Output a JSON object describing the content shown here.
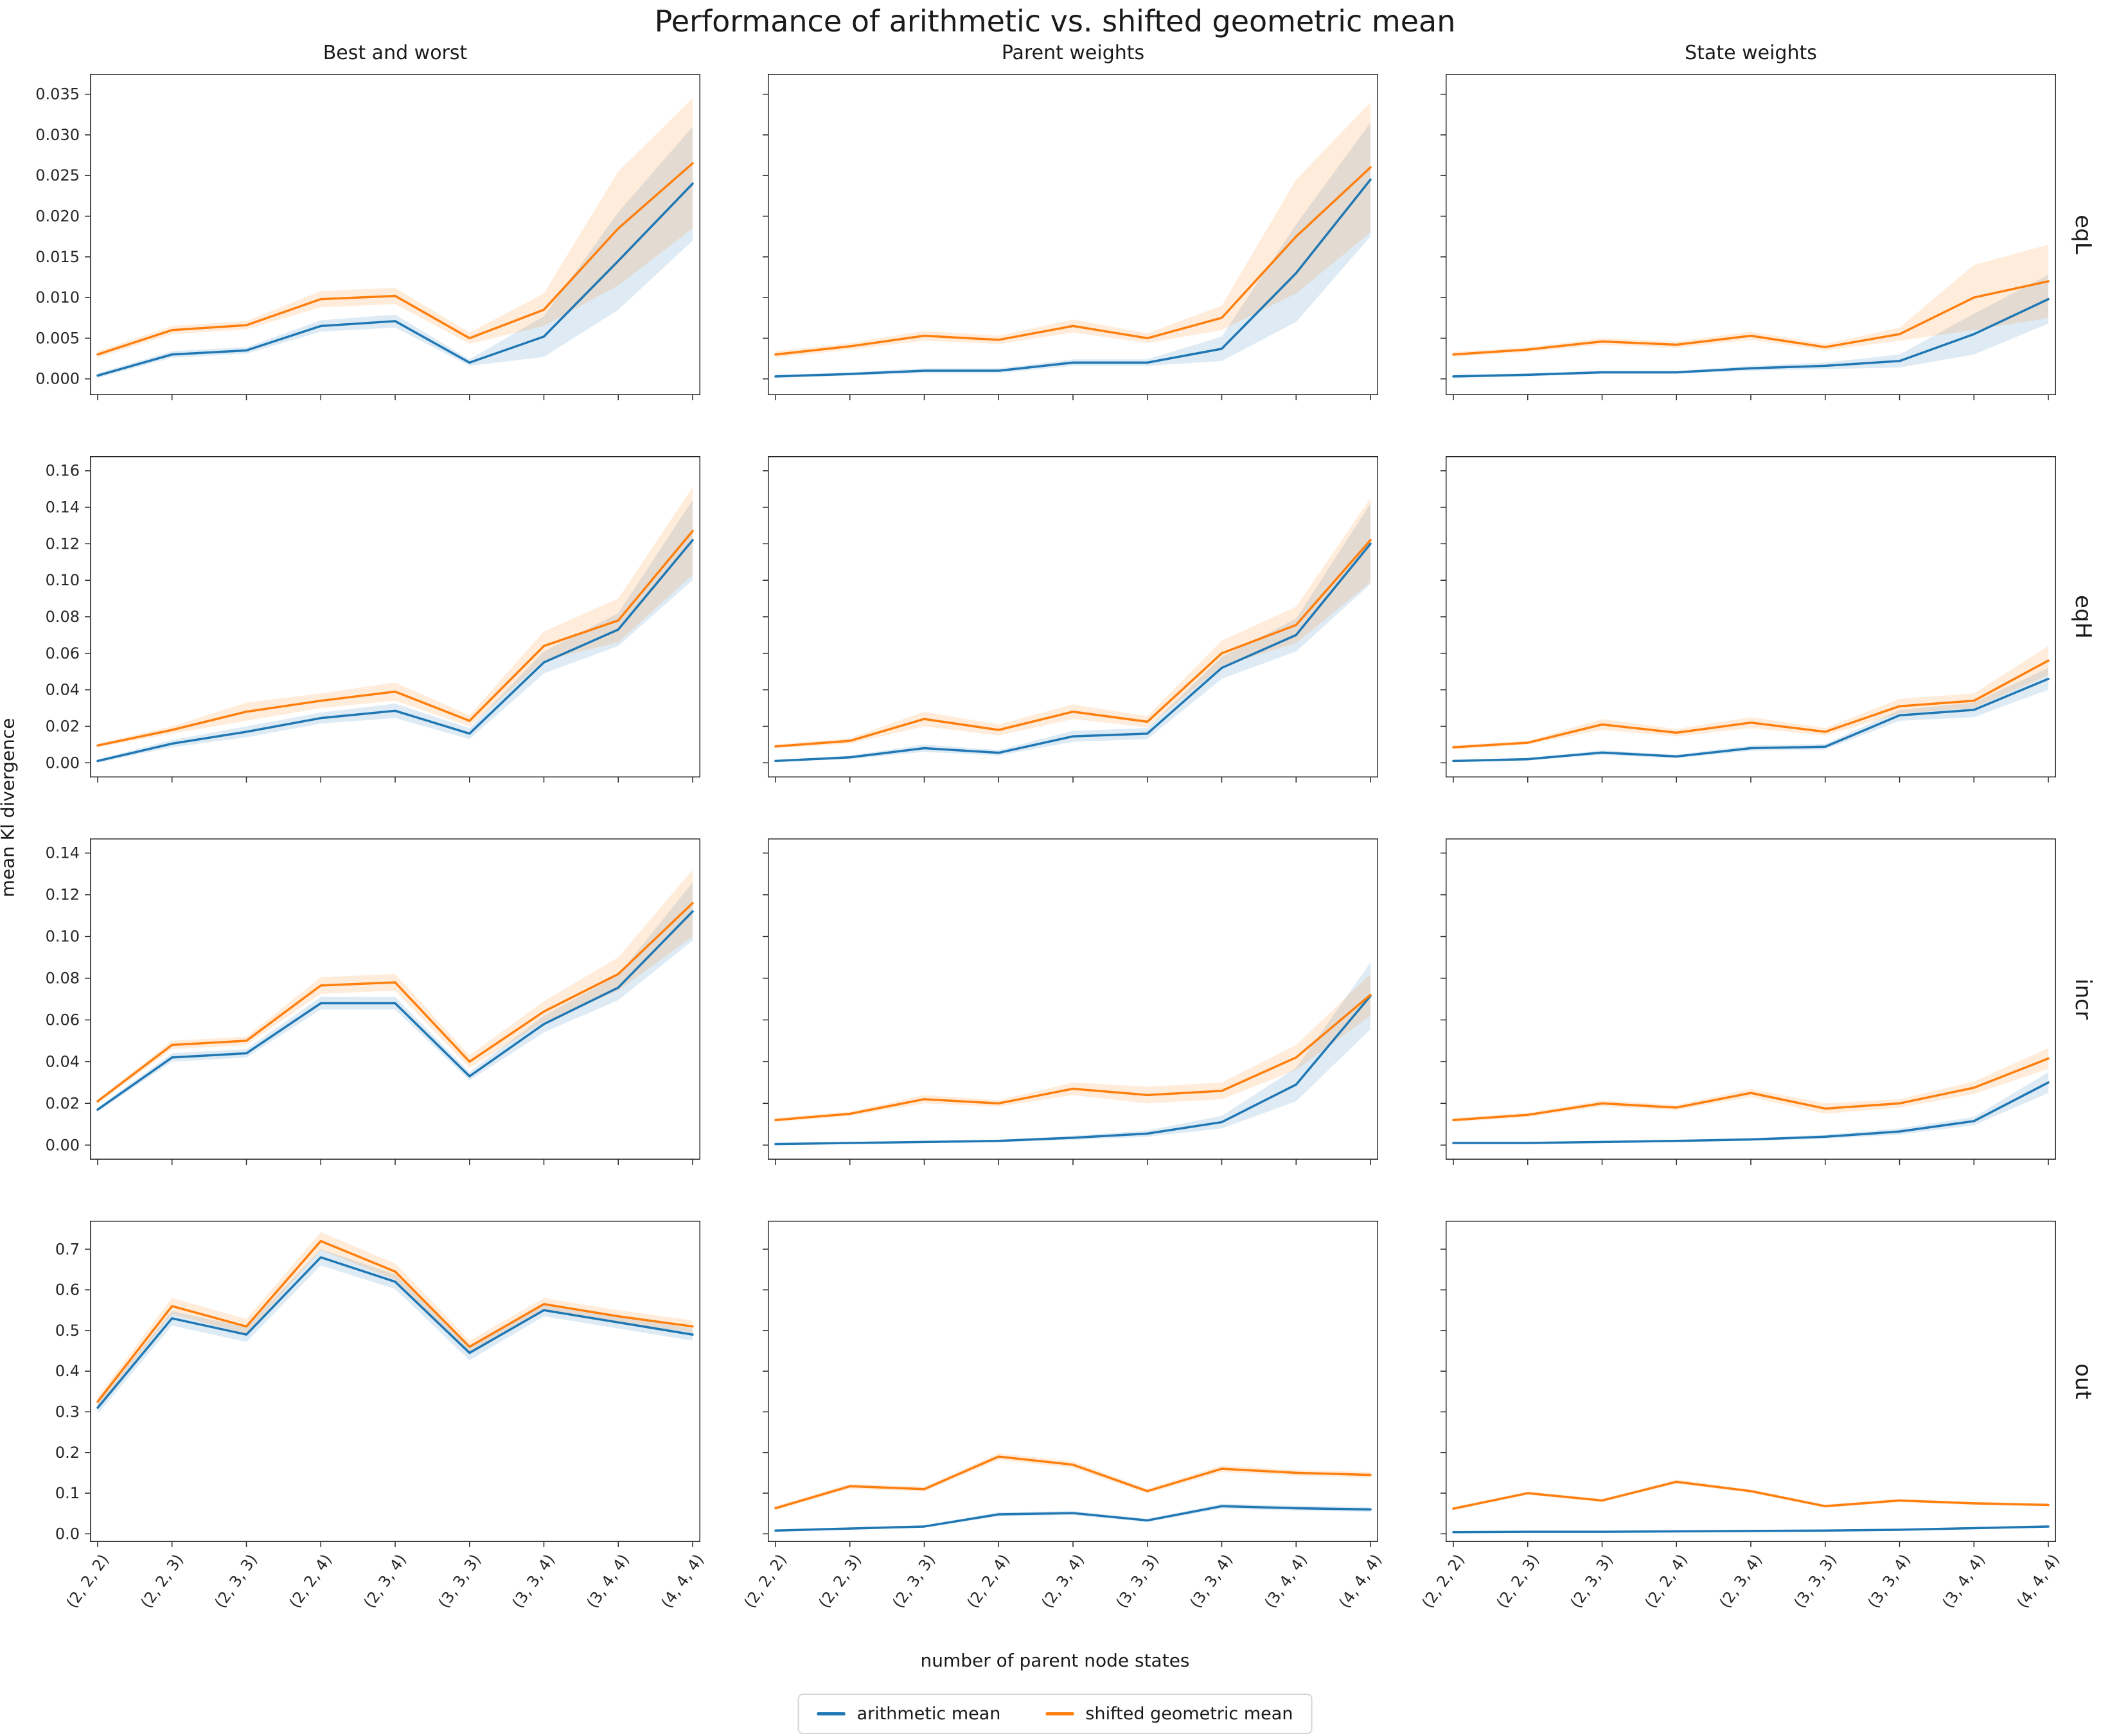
{
  "title": "Performance of arithmetic vs. shifted geometric mean",
  "xlabel": "number of parent node states",
  "ylabel": "mean Kl divergence",
  "legend": [
    {
      "label": "arithmetic mean",
      "color": "#1f77b4"
    },
    {
      "label": "shifted geometric mean",
      "color": "#ff7f0e"
    }
  ],
  "colors": {
    "arithmetic": "#1f77b4",
    "geometric": "#ff7f0e",
    "axis": "#262626",
    "background": "#ffffff",
    "band_alpha": 0.15
  },
  "chart_data": {
    "type": "line",
    "grid": "off",
    "legend_position": "bottom-center",
    "col_titles": [
      "Best and worst",
      "Parent weights",
      "State weights"
    ],
    "categories": [
      "(2, 2, 2)",
      "(2, 2, 3)",
      "(2, 3, 3)",
      "(2, 2, 4)",
      "(2, 3, 4)",
      "(3, 3, 3)",
      "(3, 3, 4)",
      "(3, 4, 4)",
      "(4, 4, 4)"
    ],
    "rows": [
      {
        "label": "eqL",
        "ylim": [
          -0.002,
          0.0375
        ],
        "ytick_values": [
          0.0,
          0.005,
          0.01,
          0.015,
          0.02,
          0.025,
          0.03,
          0.035
        ],
        "ytick_labels": [
          "0.000",
          "0.005",
          "0.010",
          "0.015",
          "0.020",
          "0.025",
          "0.030",
          "0.035"
        ],
        "panels": [
          {
            "col": "Best and worst",
            "series": [
              {
                "name": "arithmetic mean",
                "values": [
                  0.0004,
                  0.003,
                  0.0035,
                  0.0065,
                  0.0071,
                  0.002,
                  0.0052,
                  0.0145,
                  0.024
                ],
                "band": [
                  0.0003,
                  0.0004,
                  0.0004,
                  0.0007,
                  0.0008,
                  0.0004,
                  0.0025,
                  0.006,
                  0.007
                ]
              },
              {
                "name": "shifted geometric mean",
                "values": [
                  0.003,
                  0.006,
                  0.0066,
                  0.0098,
                  0.0102,
                  0.005,
                  0.0085,
                  0.0185,
                  0.0265
                ],
                "band": [
                  0.0004,
                  0.0005,
                  0.0005,
                  0.001,
                  0.001,
                  0.0007,
                  0.002,
                  0.007,
                  0.008
                ]
              }
            ]
          },
          {
            "col": "Parent weights",
            "series": [
              {
                "name": "arithmetic mean",
                "values": [
                  0.0003,
                  0.0006,
                  0.001,
                  0.001,
                  0.002,
                  0.002,
                  0.0037,
                  0.013,
                  0.0245
                ],
                "band": [
                  0.0002,
                  0.0002,
                  0.0003,
                  0.0003,
                  0.0004,
                  0.0004,
                  0.0015,
                  0.006,
                  0.007
                ]
              },
              {
                "name": "shifted geometric mean",
                "values": [
                  0.003,
                  0.004,
                  0.0053,
                  0.0048,
                  0.0065,
                  0.005,
                  0.0075,
                  0.0175,
                  0.026
                ],
                "band": [
                  0.0004,
                  0.0004,
                  0.0006,
                  0.0005,
                  0.0008,
                  0.0006,
                  0.0015,
                  0.007,
                  0.008
                ]
              }
            ]
          },
          {
            "col": "State weights",
            "series": [
              {
                "name": "arithmetic mean",
                "values": [
                  0.0003,
                  0.0005,
                  0.0008,
                  0.0008,
                  0.0013,
                  0.0016,
                  0.0022,
                  0.0055,
                  0.0098
                ],
                "band": [
                  0.0002,
                  0.0002,
                  0.0002,
                  0.0002,
                  0.0003,
                  0.0004,
                  0.0008,
                  0.0025,
                  0.003
                ]
              },
              {
                "name": "shifted geometric mean",
                "values": [
                  0.003,
                  0.0036,
                  0.0046,
                  0.0042,
                  0.0053,
                  0.0039,
                  0.0055,
                  0.01,
                  0.012
                ],
                "band": [
                  0.0003,
                  0.0003,
                  0.0004,
                  0.0004,
                  0.0005,
                  0.0004,
                  0.0008,
                  0.004,
                  0.0045
                ]
              }
            ]
          }
        ]
      },
      {
        "label": "eqH",
        "ylim": [
          -0.008,
          0.168
        ],
        "ytick_values": [
          0.0,
          0.02,
          0.04,
          0.06,
          0.08,
          0.1,
          0.12,
          0.14,
          0.16
        ],
        "ytick_labels": [
          "0.00",
          "0.02",
          "0.04",
          "0.06",
          "0.08",
          "0.10",
          "0.12",
          "0.14",
          "0.16"
        ],
        "panels": [
          {
            "col": "Best and worst",
            "series": [
              {
                "name": "arithmetic mean",
                "values": [
                  0.001,
                  0.0105,
                  0.017,
                  0.0245,
                  0.0285,
                  0.016,
                  0.055,
                  0.073,
                  0.122
                ],
                "band": [
                  0.001,
                  0.002,
                  0.003,
                  0.003,
                  0.004,
                  0.003,
                  0.006,
                  0.009,
                  0.022
                ]
              },
              {
                "name": "shifted geometric mean",
                "values": [
                  0.0095,
                  0.018,
                  0.028,
                  0.034,
                  0.039,
                  0.023,
                  0.064,
                  0.078,
                  0.127
                ],
                "band": [
                  0.001,
                  0.002,
                  0.005,
                  0.004,
                  0.005,
                  0.003,
                  0.008,
                  0.012,
                  0.024
                ]
              }
            ]
          },
          {
            "col": "Parent weights",
            "series": [
              {
                "name": "arithmetic mean",
                "values": [
                  0.001,
                  0.003,
                  0.008,
                  0.0055,
                  0.0145,
                  0.016,
                  0.052,
                  0.07,
                  0.12
                ],
                "band": [
                  0.0005,
                  0.001,
                  0.002,
                  0.0015,
                  0.003,
                  0.003,
                  0.006,
                  0.009,
                  0.022
                ]
              },
              {
                "name": "shifted geometric mean",
                "values": [
                  0.009,
                  0.012,
                  0.024,
                  0.018,
                  0.028,
                  0.0225,
                  0.06,
                  0.0755,
                  0.122
                ],
                "band": [
                  0.001,
                  0.0015,
                  0.004,
                  0.003,
                  0.004,
                  0.003,
                  0.007,
                  0.01,
                  0.023
                ]
              }
            ]
          },
          {
            "col": "State weights",
            "series": [
              {
                "name": "arithmetic mean",
                "values": [
                  0.001,
                  0.002,
                  0.0056,
                  0.0035,
                  0.008,
                  0.0088,
                  0.026,
                  0.029,
                  0.046
                ],
                "band": [
                  0.0005,
                  0.0008,
                  0.0012,
                  0.001,
                  0.0015,
                  0.0015,
                  0.003,
                  0.004,
                  0.006
                ]
              },
              {
                "name": "shifted geometric mean",
                "values": [
                  0.0085,
                  0.011,
                  0.021,
                  0.0165,
                  0.022,
                  0.017,
                  0.031,
                  0.034,
                  0.056
                ],
                "band": [
                  0.001,
                  0.001,
                  0.003,
                  0.002,
                  0.003,
                  0.002,
                  0.004,
                  0.004,
                  0.008
                ]
              }
            ]
          }
        ]
      },
      {
        "label": "incr",
        "ylim": [
          -0.007,
          0.147
        ],
        "ytick_values": [
          0.0,
          0.02,
          0.04,
          0.06,
          0.08,
          0.1,
          0.12,
          0.14
        ],
        "ytick_labels": [
          "0.00",
          "0.02",
          "0.04",
          "0.06",
          "0.08",
          "0.10",
          "0.12",
          "0.14"
        ],
        "panels": [
          {
            "col": "Best and worst",
            "series": [
              {
                "name": "arithmetic mean",
                "values": [
                  0.017,
                  0.042,
                  0.044,
                  0.068,
                  0.068,
                  0.033,
                  0.058,
                  0.0755,
                  0.112
                ],
                "band": [
                  0.001,
                  0.002,
                  0.002,
                  0.003,
                  0.003,
                  0.002,
                  0.004,
                  0.006,
                  0.014
                ]
              },
              {
                "name": "shifted geometric mean",
                "values": [
                  0.021,
                  0.048,
                  0.05,
                  0.0765,
                  0.078,
                  0.04,
                  0.064,
                  0.082,
                  0.116
                ],
                "band": [
                  0.001,
                  0.002,
                  0.002,
                  0.004,
                  0.004,
                  0.003,
                  0.005,
                  0.008,
                  0.016
                ]
              }
            ]
          },
          {
            "col": "Parent weights",
            "series": [
              {
                "name": "arithmetic mean",
                "values": [
                  0.0005,
                  0.001,
                  0.0015,
                  0.002,
                  0.0035,
                  0.0055,
                  0.011,
                  0.029,
                  0.0715
                ],
                "band": [
                  0.0003,
                  0.0004,
                  0.0005,
                  0.0006,
                  0.001,
                  0.0015,
                  0.003,
                  0.008,
                  0.016
                ]
              },
              {
                "name": "shifted geometric mean",
                "values": [
                  0.012,
                  0.015,
                  0.022,
                  0.02,
                  0.027,
                  0.024,
                  0.026,
                  0.042,
                  0.072
                ],
                "band": [
                  0.001,
                  0.001,
                  0.002,
                  0.0015,
                  0.003,
                  0.004,
                  0.004,
                  0.006,
                  0.01
                ]
              }
            ]
          },
          {
            "col": "State weights",
            "series": [
              {
                "name": "arithmetic mean",
                "values": [
                  0.001,
                  0.001,
                  0.0015,
                  0.002,
                  0.0027,
                  0.004,
                  0.0065,
                  0.0115,
                  0.03
                ],
                "band": [
                  0.0003,
                  0.0003,
                  0.0004,
                  0.0005,
                  0.0007,
                  0.001,
                  0.0015,
                  0.002,
                  0.005
                ]
              },
              {
                "name": "shifted geometric mean",
                "values": [
                  0.012,
                  0.0145,
                  0.02,
                  0.018,
                  0.025,
                  0.0175,
                  0.02,
                  0.0275,
                  0.0415
                ],
                "band": [
                  0.001,
                  0.001,
                  0.0015,
                  0.0012,
                  0.002,
                  0.0025,
                  0.002,
                  0.003,
                  0.005
                ]
              }
            ]
          }
        ]
      },
      {
        "label": "out",
        "ylim": [
          -0.02,
          0.77
        ],
        "ytick_values": [
          0.0,
          0.1,
          0.2,
          0.3,
          0.4,
          0.5,
          0.6,
          0.7
        ],
        "ytick_labels": [
          "0.0",
          "0.1",
          "0.2",
          "0.3",
          "0.4",
          "0.5",
          "0.6",
          "0.7"
        ],
        "panels": [
          {
            "col": "Best and worst",
            "series": [
              {
                "name": "arithmetic mean",
                "values": [
                  0.31,
                  0.53,
                  0.49,
                  0.68,
                  0.62,
                  0.445,
                  0.55,
                  0.52,
                  0.49
                ],
                "band": [
                  0.015,
                  0.018,
                  0.018,
                  0.02,
                  0.018,
                  0.018,
                  0.015,
                  0.015,
                  0.015
                ]
              },
              {
                "name": "shifted geometric mean",
                "values": [
                  0.325,
                  0.56,
                  0.51,
                  0.72,
                  0.645,
                  0.46,
                  0.565,
                  0.535,
                  0.51
                ],
                "band": [
                  0.012,
                  0.02,
                  0.018,
                  0.022,
                  0.02,
                  0.015,
                  0.015,
                  0.015,
                  0.015
                ]
              }
            ]
          },
          {
            "col": "Parent weights",
            "series": [
              {
                "name": "arithmetic mean",
                "values": [
                  0.008,
                  0.013,
                  0.018,
                  0.048,
                  0.051,
                  0.033,
                  0.068,
                  0.063,
                  0.06
                ],
                "band": [
                  0.003,
                  0.003,
                  0.003,
                  0.005,
                  0.005,
                  0.004,
                  0.006,
                  0.006,
                  0.006
                ]
              },
              {
                "name": "shifted geometric mean",
                "values": [
                  0.063,
                  0.117,
                  0.11,
                  0.19,
                  0.17,
                  0.105,
                  0.16,
                  0.15,
                  0.145
                ],
                "band": [
                  0.005,
                  0.006,
                  0.006,
                  0.008,
                  0.008,
                  0.006,
                  0.008,
                  0.007,
                  0.007
                ]
              }
            ]
          },
          {
            "col": "State weights",
            "series": [
              {
                "name": "arithmetic mean",
                "values": [
                  0.004,
                  0.005,
                  0.005,
                  0.006,
                  0.007,
                  0.008,
                  0.01,
                  0.014,
                  0.018
                ],
                "band": [
                  0.002,
                  0.002,
                  0.002,
                  0.002,
                  0.002,
                  0.002,
                  0.002,
                  0.003,
                  0.003
                ]
              },
              {
                "name": "shifted geometric mean",
                "values": [
                  0.062,
                  0.1,
                  0.082,
                  0.128,
                  0.105,
                  0.068,
                  0.082,
                  0.075,
                  0.071
                ],
                "band": [
                  0.004,
                  0.004,
                  0.004,
                  0.005,
                  0.004,
                  0.004,
                  0.004,
                  0.004,
                  0.004
                ]
              }
            ]
          }
        ]
      }
    ]
  }
}
